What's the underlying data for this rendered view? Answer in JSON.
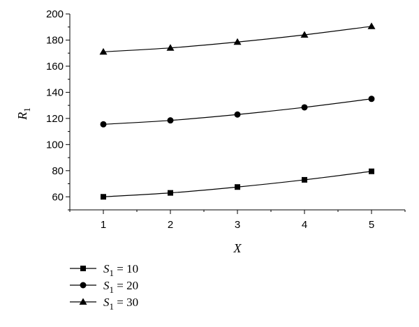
{
  "chart_data": {
    "type": "line",
    "x": [
      1,
      2,
      3,
      4,
      5
    ],
    "xlabel": "X",
    "ylabel": {
      "base": "R",
      "sub": "1"
    },
    "xlim": [
      0.5,
      5.5
    ],
    "ylim": [
      50,
      200
    ],
    "yticks": [
      60,
      80,
      100,
      120,
      140,
      160,
      180,
      200
    ],
    "xticks": [
      1,
      2,
      3,
      4,
      5
    ],
    "grid": false,
    "legend_position": "bottom-left",
    "series": [
      {
        "name": {
          "base": "S",
          "sub": "1",
          "rest": " = 10"
        },
        "marker": "square",
        "values": [
          60,
          63,
          67.5,
          73,
          79.5
        ]
      },
      {
        "name": {
          "base": "S",
          "sub": "1",
          "rest": " = 20"
        },
        "marker": "circle",
        "values": [
          115.5,
          118.5,
          123,
          128.5,
          135
        ]
      },
      {
        "name": {
          "base": "S",
          "sub": "1",
          "rest": " = 30"
        },
        "marker": "triangle",
        "values": [
          171,
          174,
          178.5,
          184,
          190.5
        ]
      }
    ]
  }
}
